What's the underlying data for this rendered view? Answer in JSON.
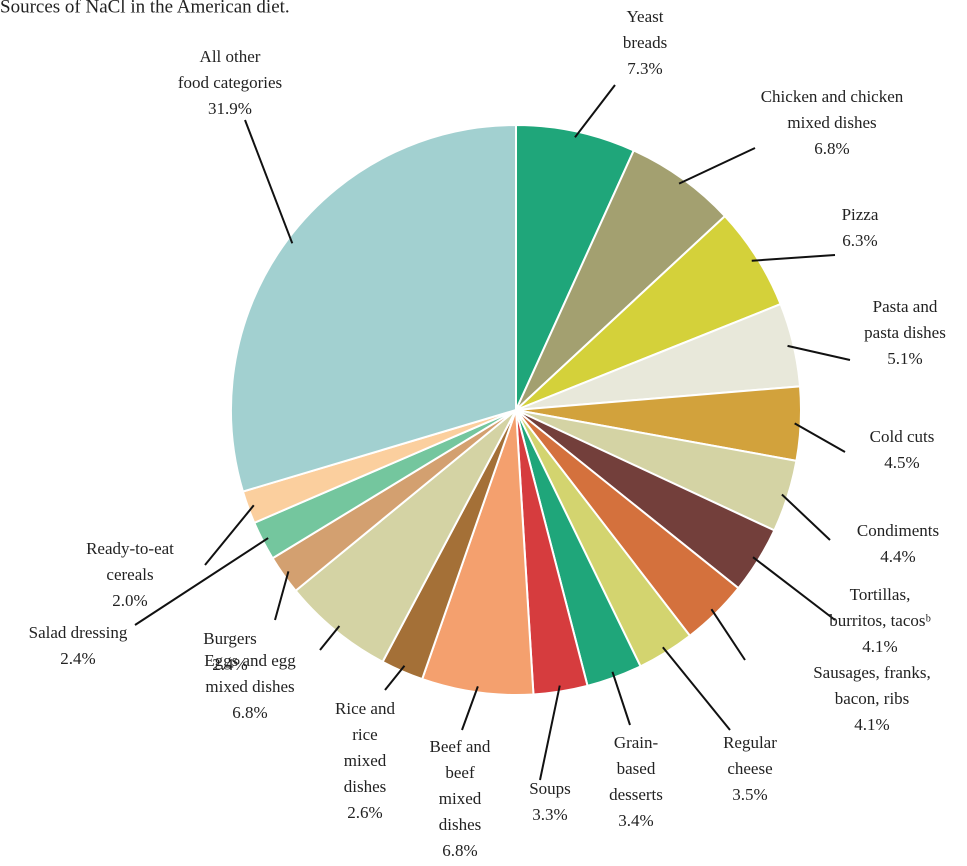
{
  "chart_data": {
    "type": "pie",
    "title": "Sources of NaCl in the American diet.",
    "categories": [
      "Yeast\nbreads",
      "Chicken and chicken\nmixed dishes",
      "Pizza",
      "Pasta and\npasta dishes",
      "Cold cuts",
      "Condiments",
      "Tortillas,\nburritos, tacosᵇ",
      "Sausages, franks,\nbacon, ribs",
      "Regular\ncheese",
      "Grain-\nbased\ndesserts",
      "Soups",
      "Beef and\nbeef\nmixed\ndishes",
      "Rice and\nrice\nmixed\ndishes",
      "Eggs and egg\nmixed dishes",
      "Burgers",
      "Salad dressing",
      "Ready-to-eat\ncereals",
      "All other\nfood categories"
    ],
    "values": [
      7.3,
      6.8,
      6.3,
      5.1,
      4.5,
      4.4,
      4.1,
      4.1,
      3.5,
      3.4,
      3.3,
      6.8,
      2.6,
      6.8,
      2.4,
      2.4,
      2.0,
      31.9
    ],
    "value_labels": [
      "7.3%",
      "6.8%",
      "6.3%",
      "5.1%",
      "4.5%",
      "4.4%",
      "4.1%",
      "4.1%",
      "3.5%",
      "3.4%",
      "3.3%",
      "6.8%",
      "2.6%",
      "6.8%",
      "2.4%",
      "2.4%",
      "2.0%",
      "31.9%"
    ],
    "colors": [
      "#1fa67a",
      "#a3a070",
      "#d4d13a",
      "#e8e8da",
      "#d2a23c",
      "#d4d3a4",
      "#733f3b",
      "#d4713d",
      "#d3d46f",
      "#1fa67a",
      "#d63c3e",
      "#f4a06e",
      "#a47037",
      "#d4d3a4",
      "#d3a070",
      "#74c69e",
      "#fbcf9e",
      "#a2d0d0"
    ]
  }
}
